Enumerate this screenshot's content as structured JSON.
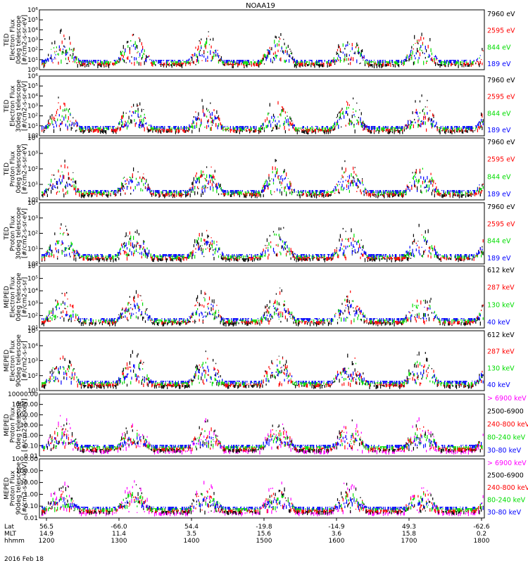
{
  "title": "NOAA19",
  "date_label": "2016 Feb 18",
  "colors": {
    "blue": "#0000ff",
    "red": "#ff0000",
    "green": "#00dd00",
    "black": "#000000",
    "magenta": "#ff00ff"
  },
  "chart_data": [
    {
      "type": "scatter",
      "scale": "log",
      "ylabel": [
        "TED",
        "Electron Flux",
        "0deg telescope",
        "[#/cm2-s-sr-eV]"
      ],
      "yticks": [
        "10⁰",
        "10¹",
        "10²",
        "10³",
        "10⁴",
        "10⁵",
        "10⁶"
      ],
      "ylim": [
        1,
        1000000
      ],
      "legend": [
        {
          "name": "7960 eV",
          "color": "#000000"
        },
        {
          "name": "2595 eV",
          "color": "#ff0000"
        },
        {
          "name": "844 eV",
          "color": "#00dd00"
        },
        {
          "name": "189 eV",
          "color": "#0000ff"
        }
      ]
    },
    {
      "type": "scatter",
      "scale": "log",
      "ylabel": [
        "TED",
        "Electron Flux",
        "30deg telescope",
        "[#/cm2-s-sr-eV]"
      ],
      "yticks": [
        "10⁰",
        "10¹",
        "10²",
        "10³",
        "10⁴",
        "10⁵",
        "10⁶"
      ],
      "ylim": [
        1,
        1000000
      ],
      "legend": [
        {
          "name": "7960 eV",
          "color": "#000000"
        },
        {
          "name": "2595 eV",
          "color": "#ff0000"
        },
        {
          "name": "844 eV",
          "color": "#00dd00"
        },
        {
          "name": "189 eV",
          "color": "#0000ff"
        }
      ]
    },
    {
      "type": "scatter",
      "scale": "log",
      "ylabel": [
        "TED",
        "Proton Flux",
        "0deg telescope",
        "[#/cm2-s-sr-eV]"
      ],
      "yticks": [
        "10⁰",
        "10¹",
        "10²",
        "10³",
        "10⁴"
      ],
      "ylim": [
        1,
        10000
      ],
      "legend": [
        {
          "name": "7960 eV",
          "color": "#000000"
        },
        {
          "name": "2595 eV",
          "color": "#ff0000"
        },
        {
          "name": "844 eV",
          "color": "#00dd00"
        },
        {
          "name": "189 eV",
          "color": "#0000ff"
        }
      ]
    },
    {
      "type": "scatter",
      "scale": "log",
      "ylabel": [
        "TED",
        "Proton Flux",
        "30deg telescope",
        "[#/cm2-s-sr-eV]"
      ],
      "yticks": [
        "10⁰",
        "10¹",
        "10²",
        "10³",
        "10⁴"
      ],
      "ylim": [
        1,
        10000
      ],
      "legend": [
        {
          "name": "7960 eV",
          "color": "#000000"
        },
        {
          "name": "2595 eV",
          "color": "#ff0000"
        },
        {
          "name": "844 eV",
          "color": "#00dd00"
        },
        {
          "name": "189 eV",
          "color": "#0000ff"
        }
      ]
    },
    {
      "type": "scatter",
      "scale": "log",
      "ylabel": [
        "MEPED",
        "Electron Flux",
        "0deg telescope",
        "[#/cm2-s-sr]"
      ],
      "yticks": [
        "10¹",
        "10²",
        "10³",
        "10⁴",
        "10⁵",
        "10⁶"
      ],
      "ylim": [
        10,
        1000000
      ],
      "legend": [
        {
          "name": "612 keV",
          "color": "#000000"
        },
        {
          "name": "287 keV",
          "color": "#ff0000"
        },
        {
          "name": "130 keV",
          "color": "#00dd00"
        },
        {
          "name": "40 keV",
          "color": "#0000ff"
        }
      ]
    },
    {
      "type": "scatter",
      "scale": "log",
      "ylabel": [
        "MEPED",
        "Electron Flux",
        "90deg telescope",
        "[#/cm2-s-sr]"
      ],
      "yticks": [
        "10¹",
        "10²",
        "10³",
        "10⁴",
        "10⁵"
      ],
      "ylim": [
        10,
        100000
      ],
      "legend": [
        {
          "name": "612 keV",
          "color": "#000000"
        },
        {
          "name": "287 keV",
          "color": "#ff0000"
        },
        {
          "name": "130 keV",
          "color": "#00dd00"
        },
        {
          "name": "40 keV",
          "color": "#0000ff"
        }
      ]
    },
    {
      "type": "scatter",
      "scale": "log",
      "ylabel": [
        "MEPED",
        "Proton Flux",
        "0deg telescope",
        "[#/cm2-s-sr-keV]"
      ],
      "yticks": [
        "0.01",
        "0.10",
        "1.00",
        "10.00",
        "100.00",
        "1000.00",
        "10000.00"
      ],
      "ylim": [
        0.01,
        10000
      ],
      "legend": [
        {
          "name": "> 6900 keV",
          "color": "#ff00ff"
        },
        {
          "name": "2500-6900",
          "color": "#000000"
        },
        {
          "name": "240-800 keV",
          "color": "#ff0000"
        },
        {
          "name": "80-240 keV",
          "color": "#00dd00"
        },
        {
          "name": "30-80 keV",
          "color": "#0000ff"
        }
      ]
    },
    {
      "type": "scatter",
      "scale": "log",
      "ylabel": [
        "MEPED",
        "Proton Flux",
        "90deg telescope",
        "[#/cm2-s-sr-keV]"
      ],
      "yticks": [
        "0.01",
        "0.10",
        "1.00",
        "10.00",
        "100.00",
        "1000.00"
      ],
      "ylim": [
        0.01,
        1000
      ],
      "legend": [
        {
          "name": "> 6900 keV",
          "color": "#ff00ff"
        },
        {
          "name": "2500-6900",
          "color": "#000000"
        },
        {
          "name": "240-800 keV",
          "color": "#ff0000"
        },
        {
          "name": "80-240 keV",
          "color": "#00dd00"
        },
        {
          "name": "30-80 keV",
          "color": "#0000ff"
        }
      ]
    }
  ],
  "x_axis": {
    "row_labels": [
      "Lat",
      "MLT",
      "hhmm"
    ],
    "columns": [
      {
        "lat": "56.5",
        "mlt": "14.9",
        "hhmm": "1200"
      },
      {
        "lat": "-66.0",
        "mlt": "11.4",
        "hhmm": "1300"
      },
      {
        "lat": "54.4",
        "mlt": "3.5",
        "hhmm": "1400"
      },
      {
        "lat": "-19.8",
        "mlt": "15.6",
        "hhmm": "1500"
      },
      {
        "lat": "-14.9",
        "mlt": "3.6",
        "hhmm": "1600"
      },
      {
        "lat": "49.3",
        "mlt": "15.8",
        "hhmm": "1700"
      },
      {
        "lat": "-62.6",
        "mlt": "0.2",
        "hhmm": "1800"
      }
    ]
  }
}
